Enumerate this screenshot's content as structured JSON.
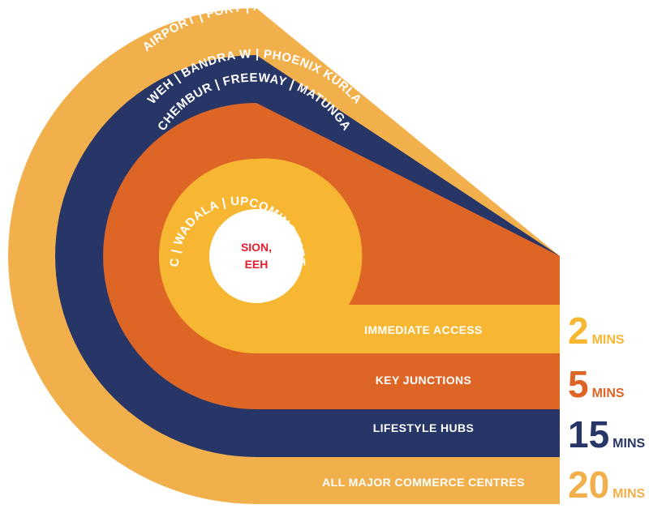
{
  "center": {
    "line1": "SION,",
    "line2": "EEH",
    "color": "#e2202c"
  },
  "rings": [
    {
      "arc_text": "BKC | WADALA | UPCOMING METRO",
      "band_label": "IMMEDIATE ACCESS",
      "number": "2",
      "unit": "MINS",
      "color": "#f8b733"
    },
    {
      "arc_text": "CHEMBUR | FREEWAY | MATUNGA",
      "band_label": "KEY JUNCTIONS",
      "number": "5",
      "unit": "MINS",
      "color": "#dd6526"
    },
    {
      "arc_text": "WEH | BANDRA W | PHOENIX KURLA",
      "band_label": "LIFESTYLE HUBS",
      "number": "15",
      "unit": "MINS",
      "color": "#283567"
    },
    {
      "arc_text": "AIRPORT | FORT | ANDHERI E | POWAI",
      "band_label": "ALL MAJOR COMMERCE CENTRES",
      "number": "20",
      "unit": "MINS",
      "color": "#f2b04c"
    }
  ]
}
